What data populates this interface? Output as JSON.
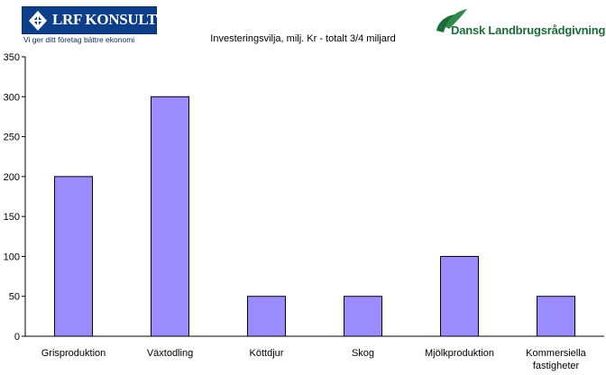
{
  "logos": {
    "left": {
      "brand": "LRF KONSULT",
      "tagline": "Vi ger ditt företag bättre ekonomi",
      "color": "#0d3e89"
    },
    "right": {
      "name": "Dansk Landbrugsrådgivning",
      "color": "#1d6b3a"
    }
  },
  "chart_data": {
    "type": "bar",
    "title": "Investeringsvilja, milj. Kr - totalt 3/4 miljard",
    "xlabel": "",
    "ylabel": "",
    "categories": [
      "Grisproduktion",
      "Växtodling",
      "Köttdjur",
      "Skog",
      "Mjölkproduktion",
      "Kommersiella fastigheter"
    ],
    "values": [
      200,
      300,
      50,
      50,
      100,
      50
    ],
    "ylim": [
      0,
      350
    ],
    "yticks": [
      "0",
      "50",
      "100",
      "150",
      "200",
      "250",
      "300",
      "350"
    ],
    "grid": false,
    "legend": "none",
    "colors": {
      "bar": "#9a8cff",
      "bar_edge": "#000000",
      "axis": "#000000"
    }
  }
}
